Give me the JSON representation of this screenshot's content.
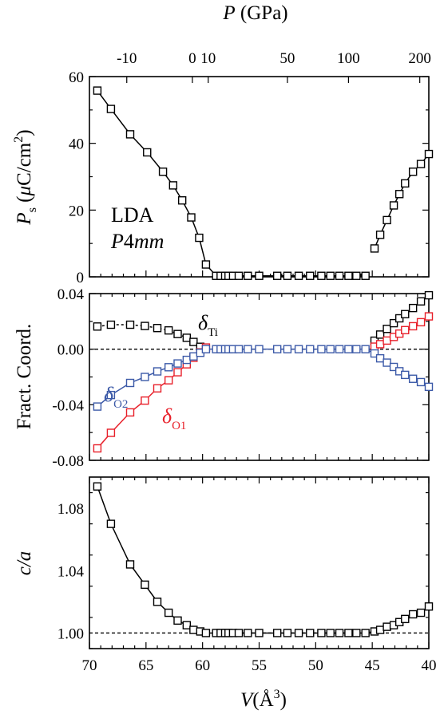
{
  "chart_data": [
    {
      "type": "line",
      "panel": "polarization",
      "x_axis": {
        "label_symbol": "V",
        "label_unit": "(Å",
        "label_unit_sup": "3",
        "label_unit_end": ")",
        "range": [
          70,
          40
        ],
        "reversed": true,
        "ticks": [
          70,
          65,
          60,
          55,
          50,
          45,
          40
        ],
        "tick_labels": [
          "70",
          "65",
          "60",
          "55",
          "50",
          "45",
          "40"
        ]
      },
      "top_axis": {
        "label_symbol": "P",
        "label_unit": "(GPa)",
        "ticks": [
          {
            "label": "-10",
            "v": 66.7
          },
          {
            "label": "0",
            "v": 60.9
          },
          {
            "label": "10",
            "v": 59.5
          },
          {
            "label": "50",
            "v": 52.5
          },
          {
            "label": "100",
            "v": 47.1
          },
          {
            "label": "200",
            "v": 40.8
          }
        ]
      },
      "y_axis": {
        "label_main": "P",
        "label_sub": "s",
        "label_unit_pre": " (",
        "label_mu": "μ",
        "label_unit": "C/cm",
        "label_unit_sup": "2",
        "label_unit_end": ")",
        "range": [
          0,
          60
        ],
        "ticks": [
          0,
          20,
          40,
          60
        ],
        "tick_labels": [
          "0",
          "20",
          "40",
          "60"
        ]
      },
      "annotations": {
        "line1": "LDA",
        "line2_pre": "P",
        "line2_num": "4",
        "line2_post": "mm"
      },
      "series": [
        {
          "color": "#000000",
          "marker": "square",
          "x": [
            69.3,
            68.1,
            66.4,
            64.9,
            63.5,
            62.6,
            61.8,
            61.0,
            60.3,
            59.7,
            58.8,
            58.4,
            58.0,
            57.7,
            57.3,
            56.8,
            56.0,
            55.0,
            53.4,
            52.5,
            51.5,
            50.5,
            49.5,
            48.7,
            47.9,
            47.1,
            46.4,
            45.6
          ],
          "y": [
            55.8,
            50.3,
            42.7,
            37.3,
            31.5,
            27.4,
            22.9,
            17.8,
            11.7,
            3.7,
            0.3,
            0.3,
            0.3,
            0.3,
            0.3,
            0.3,
            0.3,
            0.3,
            0.3,
            0.3,
            0.3,
            0.3,
            0.3,
            0.3,
            0.3,
            0.3,
            0.3,
            0.3
          ]
        },
        {
          "color": "#000000",
          "marker": "square",
          "x": [
            44.8,
            44.3,
            43.7,
            43.1,
            42.6,
            42.1,
            41.4,
            40.7,
            40.0
          ],
          "y": [
            8.5,
            12.6,
            17.0,
            21.4,
            24.8,
            28.0,
            31.5,
            33.8,
            36.8
          ]
        }
      ]
    },
    {
      "type": "line",
      "panel": "fractional-coordinates",
      "y_axis": {
        "label": "Fract. Coord.",
        "range": [
          -0.08,
          0.04
        ],
        "ticks": [
          -0.08,
          -0.04,
          0.0,
          0.04
        ],
        "tick_labels": [
          "-0.08",
          "-0.04",
          "0.00",
          "0.04"
        ]
      },
      "reference_line": {
        "y": 0.0,
        "style": "dashed"
      },
      "series": [
        {
          "label_main": "δ",
          "label_sub": "Ti",
          "color": "#000000",
          "marker": "square",
          "line_style": "dashed",
          "x": [
            69.3,
            68.1,
            66.4,
            65.1,
            64.0,
            63.0,
            62.2,
            61.4,
            60.8,
            60.2
          ],
          "y": [
            0.0163,
            0.0176,
            0.0176,
            0.0167,
            0.0152,
            0.0135,
            0.0109,
            0.0082,
            0.0052,
            0.0017
          ]
        },
        {
          "label_main": "δ",
          "label_sub": "Ti",
          "color": "#000000",
          "marker": "square",
          "line_style": "solid",
          "x": [
            44.8,
            44.3,
            43.7,
            43.1,
            42.6,
            42.1,
            41.4,
            40.7,
            40.0
          ],
          "y": [
            0.0061,
            0.0105,
            0.0146,
            0.0187,
            0.0222,
            0.0252,
            0.0296,
            0.0344,
            0.0388
          ]
        },
        {
          "label_main": "δ",
          "label_sub": "O1",
          "color": "#e8202a",
          "marker": "square",
          "line_style": "solid",
          "x": [
            69.3,
            68.1,
            66.4,
            65.1,
            64.0,
            63.0,
            62.2,
            61.4,
            60.8,
            60.2,
            59.7
          ],
          "y": [
            -0.0714,
            -0.0602,
            -0.0455,
            -0.037,
            -0.0282,
            -0.0224,
            -0.0166,
            -0.0109,
            -0.0062,
            -0.0023,
            0.0012
          ]
        },
        {
          "label_main": "δ",
          "label_sub": "O1",
          "color": "#e8202a",
          "marker": "square",
          "line_style": "solid",
          "x": [
            44.8,
            44.3,
            43.7,
            43.1,
            42.6,
            42.1,
            41.4,
            40.7,
            40.0
          ],
          "y": [
            0.0018,
            0.0036,
            0.0062,
            0.0088,
            0.0112,
            0.0137,
            0.0165,
            0.0194,
            0.0236
          ]
        },
        {
          "label_main": "δ",
          "label_sub": "O2",
          "color": "#3c5aa8",
          "marker": "square",
          "line_style": "solid",
          "x": [
            69.3,
            68.1,
            66.4,
            65.1,
            64.0,
            63.0,
            62.2,
            61.4,
            60.8,
            60.2,
            59.7,
            58.8,
            58.4,
            58.0,
            57.7,
            57.3,
            56.8,
            56.0,
            55.0,
            53.4,
            52.5,
            51.5,
            50.5,
            49.5,
            48.7,
            47.9,
            47.1,
            46.4,
            45.6,
            44.8,
            44.3,
            43.7,
            43.1,
            42.6,
            42.1,
            41.4,
            40.7,
            40.0
          ],
          "y": [
            -0.0413,
            -0.033,
            -0.0243,
            -0.02,
            -0.016,
            -0.013,
            -0.0103,
            -0.0077,
            -0.0052,
            -0.0026,
            0.0,
            0.0,
            0.0,
            0.0,
            0.0,
            0.0,
            0.0,
            0.0,
            0.0,
            0.0,
            0.0,
            0.0,
            0.0,
            0.0,
            0.0,
            0.0,
            0.0,
            0.0,
            0.0,
            -0.0031,
            -0.0066,
            -0.0097,
            -0.0128,
            -0.0159,
            -0.0185,
            -0.0213,
            -0.0237,
            -0.0271
          ]
        }
      ]
    },
    {
      "type": "line",
      "panel": "tetragonality",
      "y_axis": {
        "label": "c/a",
        "range": [
          0.99,
          1.1
        ],
        "ticks": [
          1.0,
          1.04,
          1.08
        ],
        "tick_labels": [
          "1.00",
          "1.04",
          "1.08"
        ]
      },
      "reference_line": {
        "y": 1.0,
        "style": "dashed"
      },
      "series": [
        {
          "color": "#000000",
          "marker": "square",
          "x": [
            69.3,
            68.1,
            66.4,
            65.1,
            64.0,
            63.0,
            62.2,
            61.4,
            60.8,
            60.2,
            59.7,
            58.8,
            58.4,
            58.0,
            57.7,
            57.3,
            56.8,
            56.0,
            55.0,
            53.4,
            52.5,
            51.5,
            50.5,
            49.5,
            48.7,
            47.9,
            47.1,
            46.4,
            45.6,
            44.8,
            44.3,
            43.7,
            43.1,
            42.6,
            42.1,
            41.4,
            40.7,
            40.0
          ],
          "y": [
            1.094,
            1.07,
            1.044,
            1.031,
            1.02,
            1.013,
            1.008,
            1.005,
            1.002,
            1.001,
            1.0,
            1.0,
            1.0,
            1.0,
            1.0,
            1.0,
            1.0,
            1.0,
            1.0,
            1.0,
            1.0,
            1.0,
            1.0,
            1.0,
            1.0,
            1.0,
            1.0,
            1.0,
            1.0,
            1.001,
            1.002,
            1.004,
            1.005,
            1.007,
            1.009,
            1.012,
            1.013,
            1.017
          ]
        }
      ]
    }
  ]
}
